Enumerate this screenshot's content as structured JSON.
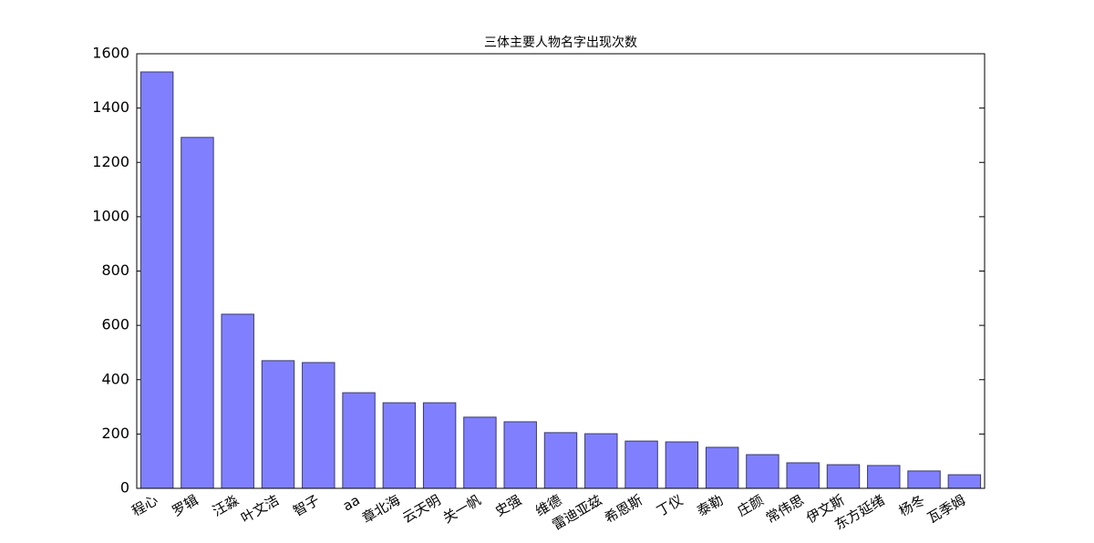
{
  "chart_data": {
    "type": "bar",
    "title": "三体主要人物名字出现次数",
    "categories": [
      "程心",
      "罗辑",
      "汪淼",
      "叶文洁",
      "智子",
      "aa",
      "章北海",
      "云天明",
      "关一帆",
      "史强",
      "维德",
      "雷迪亚兹",
      "希恩斯",
      "丁仪",
      "泰勒",
      "庄颜",
      "常伟思",
      "伊文斯",
      "东方延绪",
      "杨冬",
      "瓦季姆"
    ],
    "values": [
      1533,
      1292,
      641,
      470,
      463,
      352,
      315,
      315,
      262,
      245,
      205,
      201,
      174,
      171,
      151,
      124,
      94,
      87,
      84,
      64,
      50
    ],
    "color": "#8080ff",
    "ylim": [
      0,
      1600
    ],
    "yticks": [
      0,
      200,
      400,
      600,
      800,
      1000,
      1200,
      1400,
      1600
    ],
    "grid": false
  }
}
